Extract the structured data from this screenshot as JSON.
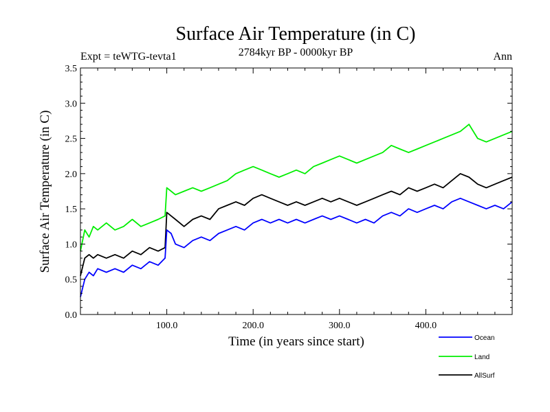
{
  "chart_data": {
    "type": "line",
    "title": "Surface Air Temperature (in C)",
    "subtitle": "2784kyr BP - 0000kyr BP",
    "expt_label": "Expt = teWTG-tevta1",
    "period_label": "Ann",
    "xlabel": "Time (in years since start)",
    "ylabel": "Surface Air Temperature (in C)",
    "xlim": [
      0,
      500
    ],
    "ylim": [
      0.0,
      3.5
    ],
    "x_ticks": [
      100,
      200,
      300,
      400
    ],
    "x_tick_labels": [
      "100.0",
      "200.0",
      "300.0",
      "400.0"
    ],
    "y_ticks": [
      0.0,
      0.5,
      1.0,
      1.5,
      2.0,
      2.5,
      3.0,
      3.5
    ],
    "y_tick_labels": [
      "0.0",
      "0.5",
      "1.0",
      "1.5",
      "2.0",
      "2.5",
      "3.0",
      "3.5"
    ],
    "series": [
      {
        "name": "Ocean",
        "color": "#0000ff",
        "x": [
          0,
          5,
          10,
          15,
          20,
          30,
          40,
          50,
          60,
          70,
          80,
          90,
          98,
          100,
          105,
          110,
          120,
          130,
          140,
          150,
          160,
          170,
          180,
          190,
          200,
          210,
          220,
          230,
          240,
          250,
          260,
          270,
          280,
          290,
          300,
          310,
          320,
          330,
          340,
          350,
          360,
          370,
          380,
          390,
          400,
          410,
          420,
          430,
          440,
          450,
          460,
          470,
          480,
          490,
          500
        ],
        "values": [
          0.25,
          0.5,
          0.6,
          0.55,
          0.65,
          0.6,
          0.65,
          0.6,
          0.7,
          0.65,
          0.75,
          0.7,
          0.8,
          1.2,
          1.15,
          1.0,
          0.95,
          1.05,
          1.1,
          1.05,
          1.15,
          1.2,
          1.25,
          1.2,
          1.3,
          1.35,
          1.3,
          1.35,
          1.3,
          1.35,
          1.3,
          1.35,
          1.4,
          1.35,
          1.4,
          1.35,
          1.3,
          1.35,
          1.3,
          1.4,
          1.45,
          1.4,
          1.5,
          1.45,
          1.5,
          1.55,
          1.5,
          1.6,
          1.65,
          1.6,
          1.55,
          1.5,
          1.55,
          1.5,
          1.6
        ]
      },
      {
        "name": "Land",
        "color": "#00ee00",
        "x": [
          0,
          5,
          10,
          15,
          20,
          30,
          40,
          50,
          60,
          70,
          80,
          90,
          98,
          100,
          105,
          110,
          120,
          130,
          140,
          150,
          160,
          170,
          180,
          190,
          200,
          210,
          220,
          230,
          240,
          250,
          260,
          270,
          280,
          290,
          300,
          310,
          320,
          330,
          340,
          350,
          360,
          370,
          380,
          390,
          400,
          410,
          420,
          430,
          440,
          450,
          460,
          470,
          480,
          490,
          500
        ],
        "values": [
          0.9,
          1.2,
          1.1,
          1.25,
          1.2,
          1.3,
          1.2,
          1.25,
          1.35,
          1.25,
          1.3,
          1.35,
          1.4,
          1.8,
          1.75,
          1.7,
          1.75,
          1.8,
          1.75,
          1.8,
          1.85,
          1.9,
          2.0,
          2.05,
          2.1,
          2.05,
          2.0,
          1.95,
          2.0,
          2.05,
          2.0,
          2.1,
          2.15,
          2.2,
          2.25,
          2.2,
          2.15,
          2.2,
          2.25,
          2.3,
          2.4,
          2.35,
          2.3,
          2.35,
          2.4,
          2.45,
          2.5,
          2.55,
          2.6,
          2.7,
          2.5,
          2.45,
          2.5,
          2.55,
          2.6
        ]
      },
      {
        "name": "AllSurf",
        "color": "#000000",
        "x": [
          0,
          5,
          10,
          15,
          20,
          30,
          40,
          50,
          60,
          70,
          80,
          90,
          98,
          100,
          105,
          110,
          120,
          130,
          140,
          150,
          160,
          170,
          180,
          190,
          200,
          210,
          220,
          230,
          240,
          250,
          260,
          270,
          280,
          290,
          300,
          310,
          320,
          330,
          340,
          350,
          360,
          370,
          380,
          390,
          400,
          410,
          420,
          430,
          440,
          450,
          460,
          470,
          480,
          490,
          500
        ],
        "values": [
          0.55,
          0.8,
          0.85,
          0.8,
          0.85,
          0.8,
          0.85,
          0.8,
          0.9,
          0.85,
          0.95,
          0.9,
          0.95,
          1.45,
          1.4,
          1.35,
          1.25,
          1.35,
          1.4,
          1.35,
          1.5,
          1.55,
          1.6,
          1.55,
          1.65,
          1.7,
          1.65,
          1.6,
          1.55,
          1.6,
          1.55,
          1.6,
          1.65,
          1.6,
          1.65,
          1.6,
          1.55,
          1.6,
          1.65,
          1.7,
          1.75,
          1.7,
          1.8,
          1.75,
          1.8,
          1.85,
          1.8,
          1.9,
          2.0,
          1.95,
          1.85,
          1.8,
          1.85,
          1.9,
          1.95
        ]
      }
    ],
    "legend_position": "bottom-right"
  }
}
